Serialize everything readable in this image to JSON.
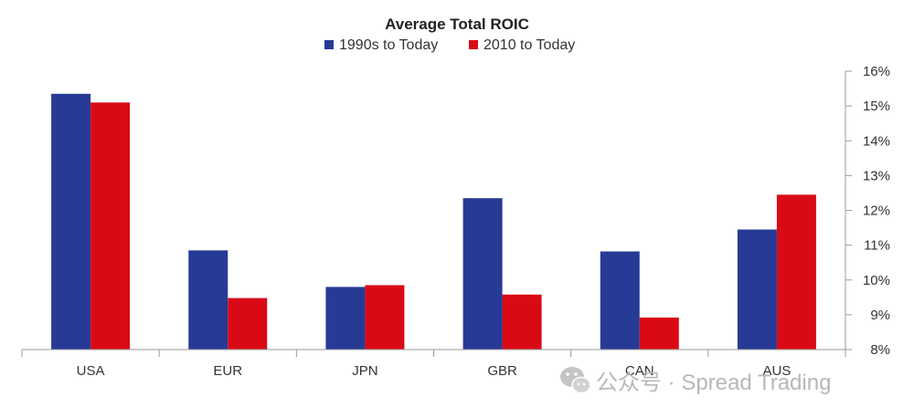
{
  "chart_data": {
    "type": "bar",
    "title": "Average Total ROIC",
    "categories": [
      "USA",
      "EUR",
      "JPN",
      "GBR",
      "CAN",
      "AUS"
    ],
    "series": [
      {
        "name": "1990s to Today",
        "color": "#263a96",
        "values": [
          15.35,
          10.85,
          9.8,
          12.35,
          10.82,
          11.45
        ]
      },
      {
        "name": "2010 to Today",
        "color": "#d90a16",
        "values": [
          15.1,
          9.48,
          9.85,
          9.58,
          8.92,
          12.45
        ]
      }
    ],
    "ylim": [
      8,
      16
    ],
    "yticks": [
      8,
      9,
      10,
      11,
      12,
      13,
      14,
      15,
      16
    ],
    "ytick_format": "{v}%",
    "y_axis_side": "right",
    "legend_position": "top-center",
    "grid": false
  },
  "watermark": {
    "text": "公众号 · Spread Trading",
    "icon": "wechat-icon"
  }
}
